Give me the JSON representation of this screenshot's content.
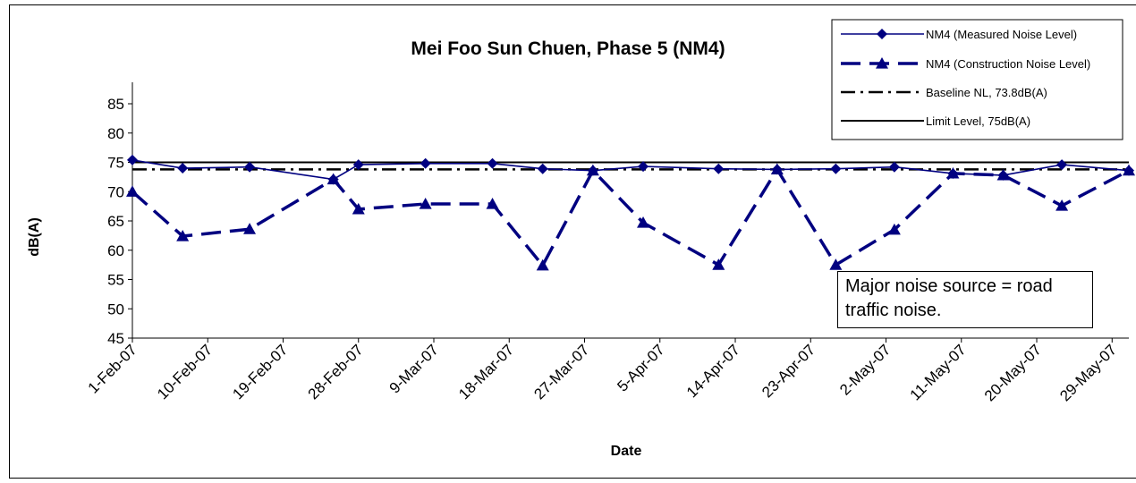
{
  "chart_data": {
    "type": "line",
    "title": "Mei Foo Sun Chuen, Phase 5 (NM4)",
    "xlabel": "Date",
    "ylabel": "dB(A)",
    "ylim": [
      45,
      85
    ],
    "yticks": [
      45,
      50,
      55,
      60,
      65,
      70,
      75,
      80,
      85
    ],
    "xlim": [
      "2007-02-01",
      "2007-05-31"
    ],
    "xtick_labels": [
      "1-Feb-07",
      "10-Feb-07",
      "19-Feb-07",
      "28-Feb-07",
      "9-Mar-07",
      "18-Mar-07",
      "27-Mar-07",
      "5-Apr-07",
      "14-Apr-07",
      "23-Apr-07",
      "2-May-07",
      "11-May-07",
      "20-May-07",
      "29-May-07"
    ],
    "xtick_dates": [
      "2007-02-01",
      "2007-02-10",
      "2007-02-19",
      "2007-02-28",
      "2007-03-09",
      "2007-03-18",
      "2007-03-27",
      "2007-04-05",
      "2007-04-14",
      "2007-04-23",
      "2007-05-02",
      "2007-05-11",
      "2007-05-20",
      "2007-05-29"
    ],
    "grid": false,
    "legend_position": "top-right",
    "series": [
      {
        "name": "NM4 (Measured Noise Level)",
        "color": "#000080",
        "style": "solid-diamond",
        "x": [
          "2007-02-01",
          "2007-02-07",
          "2007-02-15",
          "2007-02-25",
          "2007-02-28",
          "2007-03-08",
          "2007-03-16",
          "2007-03-22",
          "2007-03-28",
          "2007-04-03",
          "2007-04-12",
          "2007-04-19",
          "2007-04-26",
          "2007-05-03",
          "2007-05-10",
          "2007-05-16",
          "2007-05-23",
          "2007-05-31"
        ],
        "values": [
          75.4,
          74.0,
          74.2,
          72.1,
          74.6,
          74.8,
          74.8,
          73.9,
          73.6,
          74.3,
          73.9,
          73.8,
          73.9,
          74.2,
          73.1,
          72.8,
          74.6,
          73.6
        ]
      },
      {
        "name": "NM4 (Construction Noise Level)",
        "color": "#000080",
        "style": "dashed-triangle",
        "x": [
          "2007-02-01",
          "2007-02-07",
          "2007-02-15",
          "2007-02-25",
          "2007-02-28",
          "2007-03-08",
          "2007-03-16",
          "2007-03-22",
          "2007-03-28",
          "2007-04-03",
          "2007-04-12",
          "2007-04-19",
          "2007-04-26",
          "2007-05-03",
          "2007-05-10",
          "2007-05-16",
          "2007-05-23",
          "2007-05-31"
        ],
        "values": [
          70.0,
          62.4,
          63.6,
          72.1,
          67.0,
          67.9,
          67.9,
          57.4,
          73.6,
          64.7,
          57.5,
          73.8,
          57.5,
          63.5,
          73.1,
          72.8,
          67.6,
          73.6
        ]
      },
      {
        "name": "Baseline NL, 73.8dB(A)",
        "color": "#000000",
        "style": "dash-dot",
        "constant": 73.8
      },
      {
        "name": "Limit Level, 75dB(A)",
        "color": "#000000",
        "style": "solid",
        "constant": 75
      }
    ],
    "annotations": [
      "Major noise source = road traffic noise."
    ]
  }
}
